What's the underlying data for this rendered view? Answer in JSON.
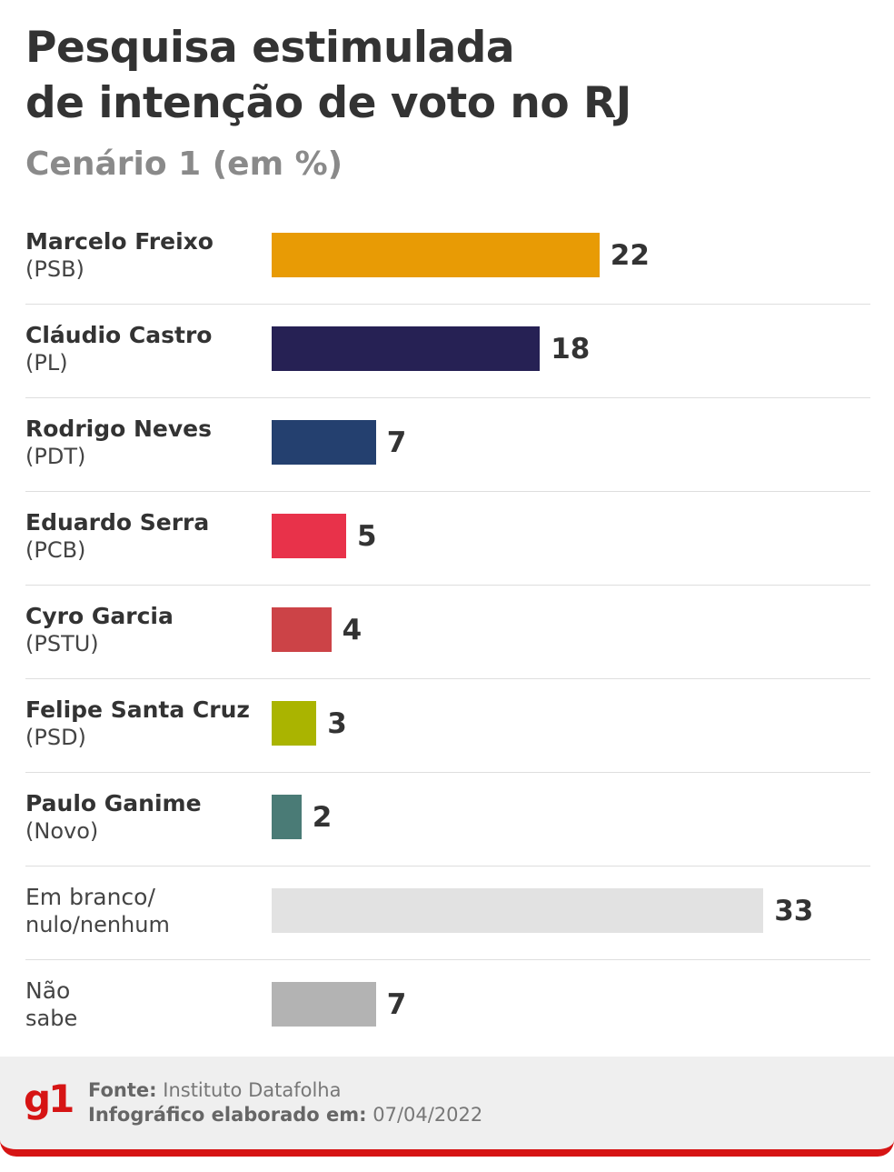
{
  "title_line1": "Pesquisa estimulada",
  "title_line2": "de intenção de voto no RJ",
  "subtitle": "Cenário 1 (em %)",
  "colors": {
    "marcelo_freixo": "#e89b05",
    "claudio_castro": "#262154",
    "rodrigo_neves": "#24406f",
    "eduardo_serra": "#e8324a",
    "cyro_garcia": "#cc4347",
    "felipe_santa_cruz": "#aab400",
    "paulo_ganime": "#4a7b76",
    "em_branco": "#e2e2e2",
    "nao_sabe": "#b3b3b3",
    "brand": "#d61414"
  },
  "chart_data": {
    "type": "bar",
    "orientation": "horizontal",
    "title": "Pesquisa estimulada de intenção de voto no RJ",
    "subtitle": "Cenário 1 (em %)",
    "categories": [
      "Marcelo Freixo (PSB)",
      "Cláudio Castro (PL)",
      "Rodrigo Neves (PDT)",
      "Eduardo Serra (PCB)",
      "Cyro Garcia (PSTU)",
      "Felipe Santa Cruz (PSD)",
      "Paulo Ganime (Novo)",
      "Em branco/ nulo/nenhum",
      "Não sabe"
    ],
    "values": [
      22,
      18,
      7,
      5,
      4,
      3,
      2,
      33,
      7
    ],
    "bars": [
      {
        "name": "Marcelo Freixo",
        "party": "(PSB)",
        "value": 22,
        "label": "22",
        "color": "#e89b05"
      },
      {
        "name": "Cláudio Castro",
        "party": "(PL)",
        "value": 18,
        "label": "18",
        "color": "#262154"
      },
      {
        "name": "Rodrigo Neves",
        "party": "(PDT)",
        "value": 7,
        "label": "7",
        "color": "#24406f"
      },
      {
        "name": "Eduardo Serra",
        "party": "(PCB)",
        "value": 5,
        "label": "5",
        "color": "#e8324a"
      },
      {
        "name": "Cyro Garcia",
        "party": "(PSTU)",
        "value": 4,
        "label": "4",
        "color": "#cc4347"
      },
      {
        "name": "Felipe Santa Cruz",
        "party": "(PSD)",
        "value": 3,
        "label": "3",
        "color": "#aab400"
      },
      {
        "name": "Paulo Ganime",
        "party": "(Novo)",
        "value": 2,
        "label": "2",
        "color": "#4a7b76"
      },
      {
        "name": "Em branco/",
        "party": "nulo/nenhum",
        "value": 33,
        "label": "33",
        "color": "#e2e2e2",
        "plain": true
      },
      {
        "name": "Não",
        "party": "sabe",
        "value": 7,
        "label": "7",
        "color": "#b3b3b3",
        "plain": true
      }
    ],
    "xlim": [
      0,
      33
    ],
    "grid": false,
    "legend": "none"
  },
  "footer": {
    "logo": "g1",
    "source_label": "Fonte:",
    "source_value": "Instituto Datafolha",
    "date_label": "Infográfico elaborado em:",
    "date_value": "07/04/2022"
  }
}
